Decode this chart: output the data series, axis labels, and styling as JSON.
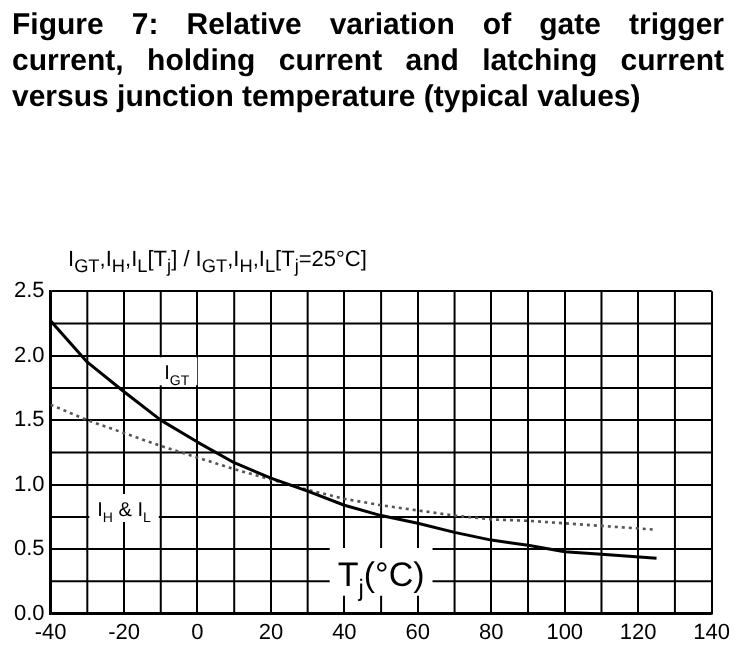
{
  "chart_data": {
    "type": "line",
    "title": "Figure 7: Relative variation of gate trigger current, holding current and latching current versus junction temperature (typical values)",
    "ylabel": "I$_{GT}$,I$_{H}$,I$_{L}$[T$_{j}$] / I$_{GT}$,I$_{H}$,I$_{L}$[T$_{j}$=25°C]",
    "xlabel": "T$_{j}$(°C)",
    "x": [
      -40,
      -30,
      -20,
      -10,
      0,
      10,
      20,
      25,
      30,
      40,
      50,
      60,
      70,
      80,
      90,
      100,
      110,
      125
    ],
    "series": [
      {
        "name": "I$_{GT}$",
        "color": "#000000",
        "line_style": "solid",
        "values": [
          2.27,
          1.95,
          1.72,
          1.5,
          1.33,
          1.17,
          1.05,
          1.0,
          0.95,
          0.84,
          0.76,
          0.7,
          0.63,
          0.57,
          0.53,
          0.48,
          0.46,
          0.43
        ]
      },
      {
        "name": "I$_{H}$ & I$_{L}$",
        "color": "#555555",
        "line_style": "dotted",
        "values": [
          1.62,
          1.5,
          1.4,
          1.3,
          1.21,
          1.12,
          1.04,
          1.0,
          0.96,
          0.89,
          0.84,
          0.8,
          0.76,
          0.73,
          0.72,
          0.7,
          0.68,
          0.65
        ]
      }
    ],
    "xlim": [
      -40,
      140
    ],
    "xticks": [
      -40,
      -20,
      0,
      20,
      40,
      60,
      80,
      100,
      120,
      140
    ],
    "ylim": [
      0,
      2.5
    ],
    "yticks": [
      {
        "value": 0,
        "label": "0.0"
      },
      0.5,
      {
        "value": 1,
        "label": "1.0"
      },
      1.5,
      {
        "value": 2,
        "label": "2.0"
      },
      2.5
    ],
    "grid": true,
    "legend": false,
    "marker": "none"
  }
}
